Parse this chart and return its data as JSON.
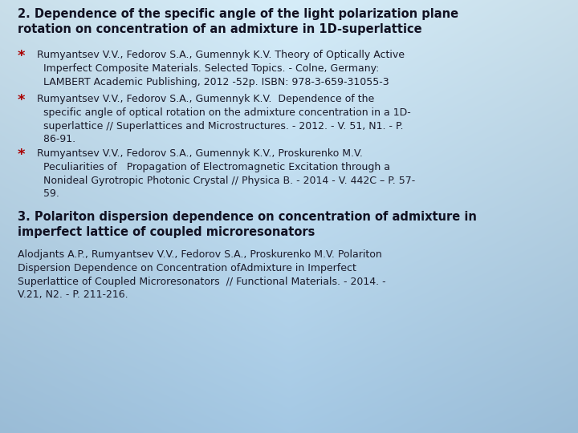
{
  "title2": "2. Dependence of the specific angle of the light polarization plane\nrotation on concentration of an admixture in 1D-superlattice",
  "bullet_color": "#aa0000",
  "bullet1": "Rumyantsev V.V., Fedorov S.A., Gumennyk K.V. Theory of Optically Active\n  Imperfect Composite Materials. Selected Topics. - Colne, Germany:\n  LAMBERT Academic Publishing, 2012 -52p. ISBN: 978-3-659-31055-3",
  "bullet2": "Rumyantsev V.V., Fedorov S.A., Gumennyk K.V.  Dependence of the\n  specific angle of optical rotation on the admixture concentration in a 1D-\n  superlattice // Superlattices and Microstructures. - 2012. - V. 51, N1. - P.\n  86-91.",
  "bullet3": "Rumyantsev V.V., Fedorov S.A., Gumennyk K.V., Proskurenko M.V.\n  Peculiarities of   Propagation of Electromagnetic Excitation through a\n  Nonideal Gyrotropic Photonic Crystal // Physica B. - 2014 - V. 442C – P. 57-\n  59.",
  "title3": "3. Polariton dispersion dependence on concentration of admixture in\nimperfect lattice of coupled microresonators",
  "ref3": "Alodjants A.P., Rumyantsev V.V., Fedorov S.A., Proskurenko M.V. Polariton\nDispersion Dependence on Concentration ofAdmixture in Imperfect\nSuperlattice of Coupled Microresonators  // Functional Materials. - 2014. -\nV.21, N2. - P. 211-216.",
  "text_color": "#1a1a2a",
  "bold_color": "#111122",
  "font_size_title": 10.5,
  "font_size_body": 9.0,
  "font_size_bullet_marker": 13,
  "bg_left_top": "#cce4f5",
  "bg_right_top": "#daeeff",
  "bg_left_bot": "#a8ceea",
  "bg_right_bot": "#bcdcf0"
}
